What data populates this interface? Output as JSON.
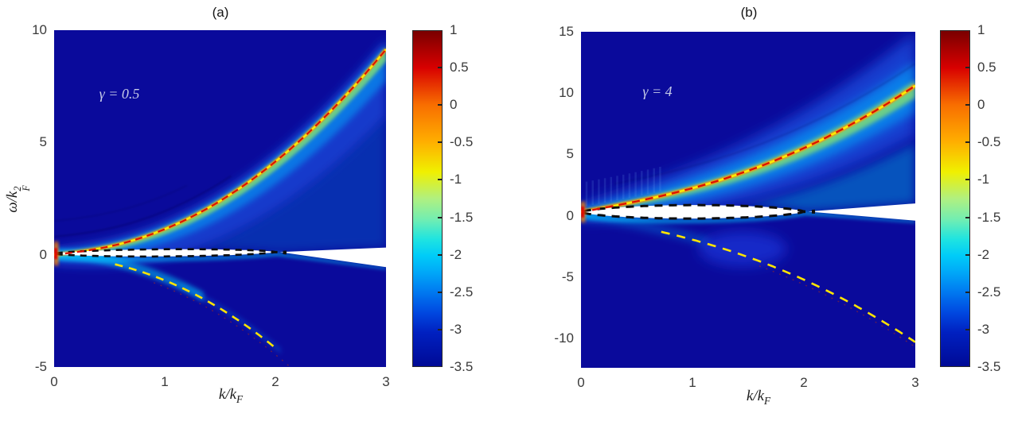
{
  "figure": {
    "panels": [
      {
        "id": "a",
        "title": "(a)",
        "annotation": "γ = 0.5",
        "xlabel": {
          "p1": "k/k",
          "sub": "F"
        },
        "ylabel": {
          "p1": "ω/k",
          "sup": "2",
          "sub": "F"
        }
      },
      {
        "id": "b",
        "title": "(b)",
        "annotation": "γ = 4",
        "xlabel": {
          "p1": "k/k",
          "sub": "F"
        }
      }
    ]
  },
  "chart_data": [
    {
      "type": "heatmap",
      "panel": "(a)",
      "annotation": "γ = 0.5",
      "xlabel": "k/k_F",
      "ylabel": "ω/k_F^2",
      "xlim": [
        0,
        3
      ],
      "ylim": [
        -5,
        10
      ],
      "x_ticks": [
        0,
        1,
        2,
        3
      ],
      "y_ticks": [
        10,
        5,
        0,
        -5
      ],
      "colormap": "jet",
      "color_scale": {
        "min": -3.5,
        "max": 1,
        "ticks": [
          1,
          0.5,
          0,
          -0.5,
          -1,
          -1.5,
          -2,
          -2.5,
          -3,
          -3.5
        ]
      },
      "background_value_color": "#0a0a9b",
      "features": {
        "upper_branch": {
          "style": "red-dashed over bright yellow ridge",
          "color": "#dd1000",
          "c": 0.3,
          "offset": 0,
          "k_range": [
            0,
            3
          ],
          "points": [
            [
              0,
              0
            ],
            [
              0.5,
              0.37
            ],
            [
              1,
              1.14
            ],
            [
              1.5,
              2.39
            ],
            [
              2,
              4.15
            ],
            [
              2.5,
              6.4
            ],
            [
              3,
              9.15
            ]
          ]
        },
        "lower_branch": {
          "style": "yellow-dashed",
          "color": "#ffe400",
          "c": 0.3,
          "offset": 0,
          "k_range": [
            0.55,
            2.0
          ],
          "points": [
            [
              0.55,
              -0.48
            ],
            [
              1,
              -1.14
            ],
            [
              1.5,
              -2.39
            ],
            [
              2,
              -4.15
            ]
          ]
        },
        "phonon_lens": {
          "style": "white region bounded by black dashed curves",
          "boundary_color": "#111111",
          "k_close": 2.0,
          "max_halfwidth": 0.16,
          "center0": 0.05,
          "center_slope": 0.035
        },
        "wedge": {
          "k_from": 2.04,
          "k_to": 3,
          "top_omega": 0.32,
          "bottom_omega": -0.55
        }
      }
    },
    {
      "type": "heatmap",
      "panel": "(b)",
      "annotation": "γ = 4",
      "xlabel": "k/k_F",
      "ylabel": "ω/k_F^2",
      "xlim": [
        0,
        3
      ],
      "ylim": [
        -12.4,
        15
      ],
      "x_ticks": [
        0,
        1,
        2,
        3
      ],
      "y_ticks": [
        15,
        10,
        5,
        0,
        -5,
        -10
      ],
      "colormap": "jet",
      "color_scale": {
        "min": -3.5,
        "max": 1,
        "ticks": [
          1,
          0.5,
          0,
          -0.5,
          -1,
          -1.5,
          -2,
          -2.5,
          -3,
          -3.5
        ]
      },
      "background_value_color": "#0a0a9b",
      "features": {
        "upper_branch": {
          "style": "red-dashed over bright yellow ridge",
          "color": "#dd1000",
          "c": 2.8,
          "offset": 0.3,
          "k_range": [
            0,
            3
          ],
          "points": [
            [
              0,
              0.3
            ],
            [
              0.5,
              1.17
            ],
            [
              1,
              2.25
            ],
            [
              1.5,
              3.67
            ],
            [
              2,
              5.52
            ],
            [
              2.5,
              7.82
            ],
            [
              3,
              10.6
            ]
          ]
        },
        "lower_branch": {
          "style": "yellow-dashed",
          "color": "#ffe400",
          "c": 2.8,
          "offset": 0,
          "k_range": [
            0.72,
            3
          ],
          "points": [
            [
              0.7,
              -1.3
            ],
            [
              1,
              -1.95
            ],
            [
              1.5,
              -3.37
            ],
            [
              2,
              -5.22
            ],
            [
              2.5,
              -7.52
            ],
            [
              3,
              -10.3
            ]
          ]
        },
        "phonon_lens": {
          "style": "white region bounded by black dashed curves",
          "boundary_color": "#111111",
          "k_close": 2.0,
          "max_halfwidth": 0.55,
          "center0": 0.3,
          "center_slope": 0.02
        },
        "wedge": {
          "k_from": 2.04,
          "k_to": 3,
          "top_omega": 1.0,
          "bottom_omega": -0.4
        }
      }
    }
  ]
}
